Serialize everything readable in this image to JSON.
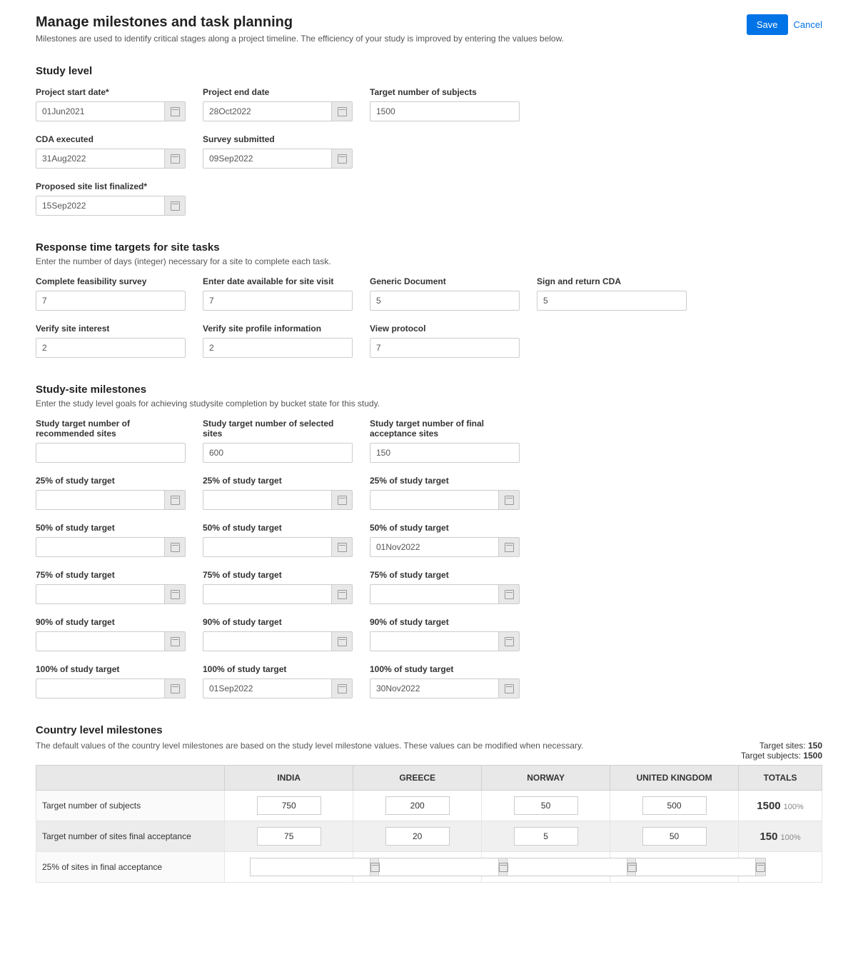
{
  "header": {
    "title": "Manage milestones and task planning",
    "subtitle": "Milestones are used to identify critical stages along a project timeline. The efficiency of your study is improved by entering the values below.",
    "save": "Save",
    "cancel": "Cancel"
  },
  "study_level": {
    "title": "Study level",
    "project_start": {
      "label": "Project start date*",
      "value": "01Jun2021"
    },
    "project_end": {
      "label": "Project end date",
      "value": "28Oct2022"
    },
    "target_subjects": {
      "label": "Target number of subjects",
      "value": "1500"
    },
    "cda_executed": {
      "label": "CDA executed",
      "value": "31Aug2022"
    },
    "survey_submitted": {
      "label": "Survey submitted",
      "value": "09Sep2022"
    },
    "proposed_site_list": {
      "label": "Proposed site list finalized*",
      "value": "15Sep2022"
    }
  },
  "response_targets": {
    "title": "Response time targets for site tasks",
    "desc": "Enter the number of days (integer) necessary for a site to complete each task.",
    "complete_feasibility": {
      "label": "Complete feasibility survey",
      "value": "7"
    },
    "enter_date_visit": {
      "label": "Enter date available for site visit",
      "value": "7"
    },
    "generic_document": {
      "label": "Generic Document",
      "value": "5"
    },
    "sign_return_cda": {
      "label": "Sign and return CDA",
      "value": "5"
    },
    "verify_site_interest": {
      "label": "Verify site interest",
      "value": "2"
    },
    "verify_site_profile": {
      "label": "Verify site profile information",
      "value": "2"
    },
    "view_protocol": {
      "label": "View protocol",
      "value": "7"
    }
  },
  "study_site": {
    "title": "Study-site milestones",
    "desc": "Enter the study level goals for achieving studysite completion by bucket state for this study.",
    "recommended": {
      "label": "Study target number of recommended sites",
      "value": ""
    },
    "selected": {
      "label": "Study target number of selected sites",
      "value": "600"
    },
    "final_acceptance": {
      "label": "Study target number of final acceptance sites",
      "value": "150"
    },
    "p25_a": {
      "label": "25% of study target",
      "value": ""
    },
    "p25_b": {
      "label": "25% of study target",
      "value": ""
    },
    "p25_c": {
      "label": "25% of study target",
      "value": ""
    },
    "p50_a": {
      "label": "50% of study target",
      "value": ""
    },
    "p50_b": {
      "label": "50% of study target",
      "value": ""
    },
    "p50_c": {
      "label": "50% of study target",
      "value": "01Nov2022"
    },
    "p75_a": {
      "label": "75% of study target",
      "value": ""
    },
    "p75_b": {
      "label": "75% of study target",
      "value": ""
    },
    "p75_c": {
      "label": "75% of study target",
      "value": ""
    },
    "p90_a": {
      "label": "90% of study target",
      "value": ""
    },
    "p90_b": {
      "label": "90% of study target",
      "value": ""
    },
    "p90_c": {
      "label": "90% of study target",
      "value": ""
    },
    "p100_a": {
      "label": "100% of study target",
      "value": ""
    },
    "p100_b": {
      "label": "100% of study target",
      "value": "01Sep2022"
    },
    "p100_c": {
      "label": "100% of study target",
      "value": "30Nov2022"
    }
  },
  "country": {
    "title": "Country level milestones",
    "desc": "The default values of the country level milestones are based on the study level milestone values. These values can be modified when necessary.",
    "target_sites_label": "Target sites:",
    "target_sites_value": "150",
    "target_subjects_label": "Target subjects:",
    "target_subjects_value": "1500",
    "columns": [
      "INDIA",
      "GREECE",
      "NORWAY",
      "UNITED KINGDOM",
      "TOTALS"
    ],
    "rows": {
      "r1": {
        "label": "Target number of subjects",
        "values": [
          "750",
          "200",
          "50",
          "500"
        ],
        "total": "1500",
        "pct": "100%"
      },
      "r2": {
        "label": "Target number of sites final acceptance",
        "values": [
          "75",
          "20",
          "5",
          "50"
        ],
        "total": "150",
        "pct": "100%"
      },
      "r3": {
        "label": "25% of sites in final acceptance",
        "values": [
          "",
          "",
          "",
          ""
        ]
      }
    }
  },
  "colors": {
    "primary": "#0073e6",
    "border": "#cccccc",
    "header_bg": "#e8e8e8",
    "shaded_row": "#f0f0f0",
    "text": "#333333",
    "muted": "#888888"
  }
}
